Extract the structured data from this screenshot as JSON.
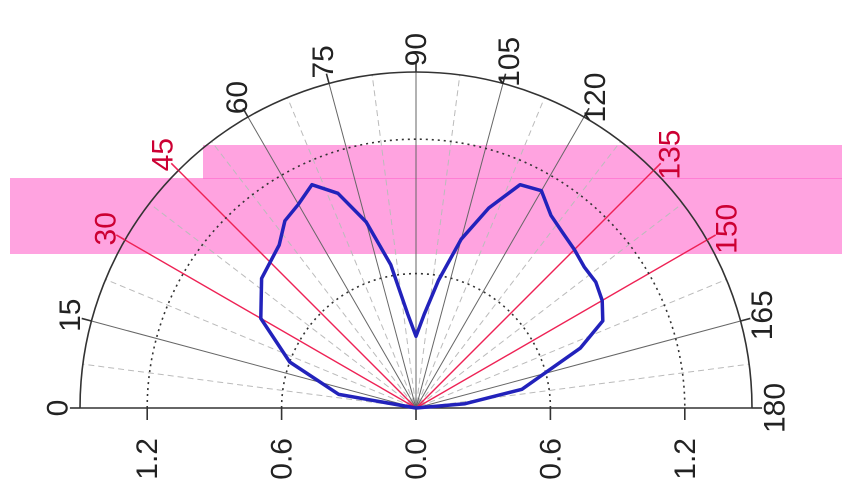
{
  "chart_data": {
    "type": "polar-line",
    "angle_labels": [
      "0",
      "15",
      "30",
      "45",
      "60",
      "75",
      "90",
      "105",
      "120",
      "135",
      "150",
      "165",
      "180"
    ],
    "radial_tick_labels": [
      "1.2",
      "0.6",
      "0.0",
      "0.6",
      "1.2"
    ],
    "radial_ticks": [
      -1.2,
      -0.6,
      0.0,
      0.6,
      1.2
    ],
    "rlim": [
      0,
      1.5
    ],
    "dotted_rings": [
      0.6,
      1.2
    ],
    "highlighted_angles": [
      30,
      45,
      135,
      150
    ],
    "series": [
      {
        "color": "#2222bb",
        "points": [
          {
            "angle": 0,
            "r": 0.0
          },
          {
            "angle": 10,
            "r": 0.35
          },
          {
            "angle": 20,
            "r": 0.6
          },
          {
            "angle": 30,
            "r": 0.8
          },
          {
            "angle": 40,
            "r": 0.9
          },
          {
            "angle": 50,
            "r": 0.95
          },
          {
            "angle": 55,
            "r": 1.02
          },
          {
            "angle": 60,
            "r": 1.05
          },
          {
            "angle": 65,
            "r": 1.1
          },
          {
            "angle": 70,
            "r": 1.02
          },
          {
            "angle": 75,
            "r": 0.86
          },
          {
            "angle": 80,
            "r": 0.65
          },
          {
            "angle": 85,
            "r": 0.42
          },
          {
            "angle": 90,
            "r": 0.32
          },
          {
            "angle": 95,
            "r": 0.42
          },
          {
            "angle": 100,
            "r": 0.58
          },
          {
            "angle": 105,
            "r": 0.78
          },
          {
            "angle": 110,
            "r": 0.95
          },
          {
            "angle": 115,
            "r": 1.1
          },
          {
            "angle": 120,
            "r": 1.12
          },
          {
            "angle": 125,
            "r": 1.05
          },
          {
            "angle": 130,
            "r": 1.02
          },
          {
            "angle": 135,
            "r": 1.0
          },
          {
            "angle": 140,
            "r": 0.98
          },
          {
            "angle": 145,
            "r": 0.98
          },
          {
            "angle": 150,
            "r": 0.96
          },
          {
            "angle": 155,
            "r": 0.92
          },
          {
            "angle": 160,
            "r": 0.78
          },
          {
            "angle": 170,
            "r": 0.48
          },
          {
            "angle": 175,
            "r": 0.22
          },
          {
            "angle": 180,
            "r": 0.0
          }
        ]
      }
    ],
    "highlight_band": {
      "color": "#ff66cc",
      "from_angle": 30,
      "to_angle": 150
    }
  },
  "colors": {
    "axis": "#333333",
    "grid_dashed": "#bbbbbb",
    "ring_dotted": "#333333",
    "highlight_line": "#ee2255",
    "highlight_text": "#cc0033",
    "band": "#ff66cc"
  }
}
